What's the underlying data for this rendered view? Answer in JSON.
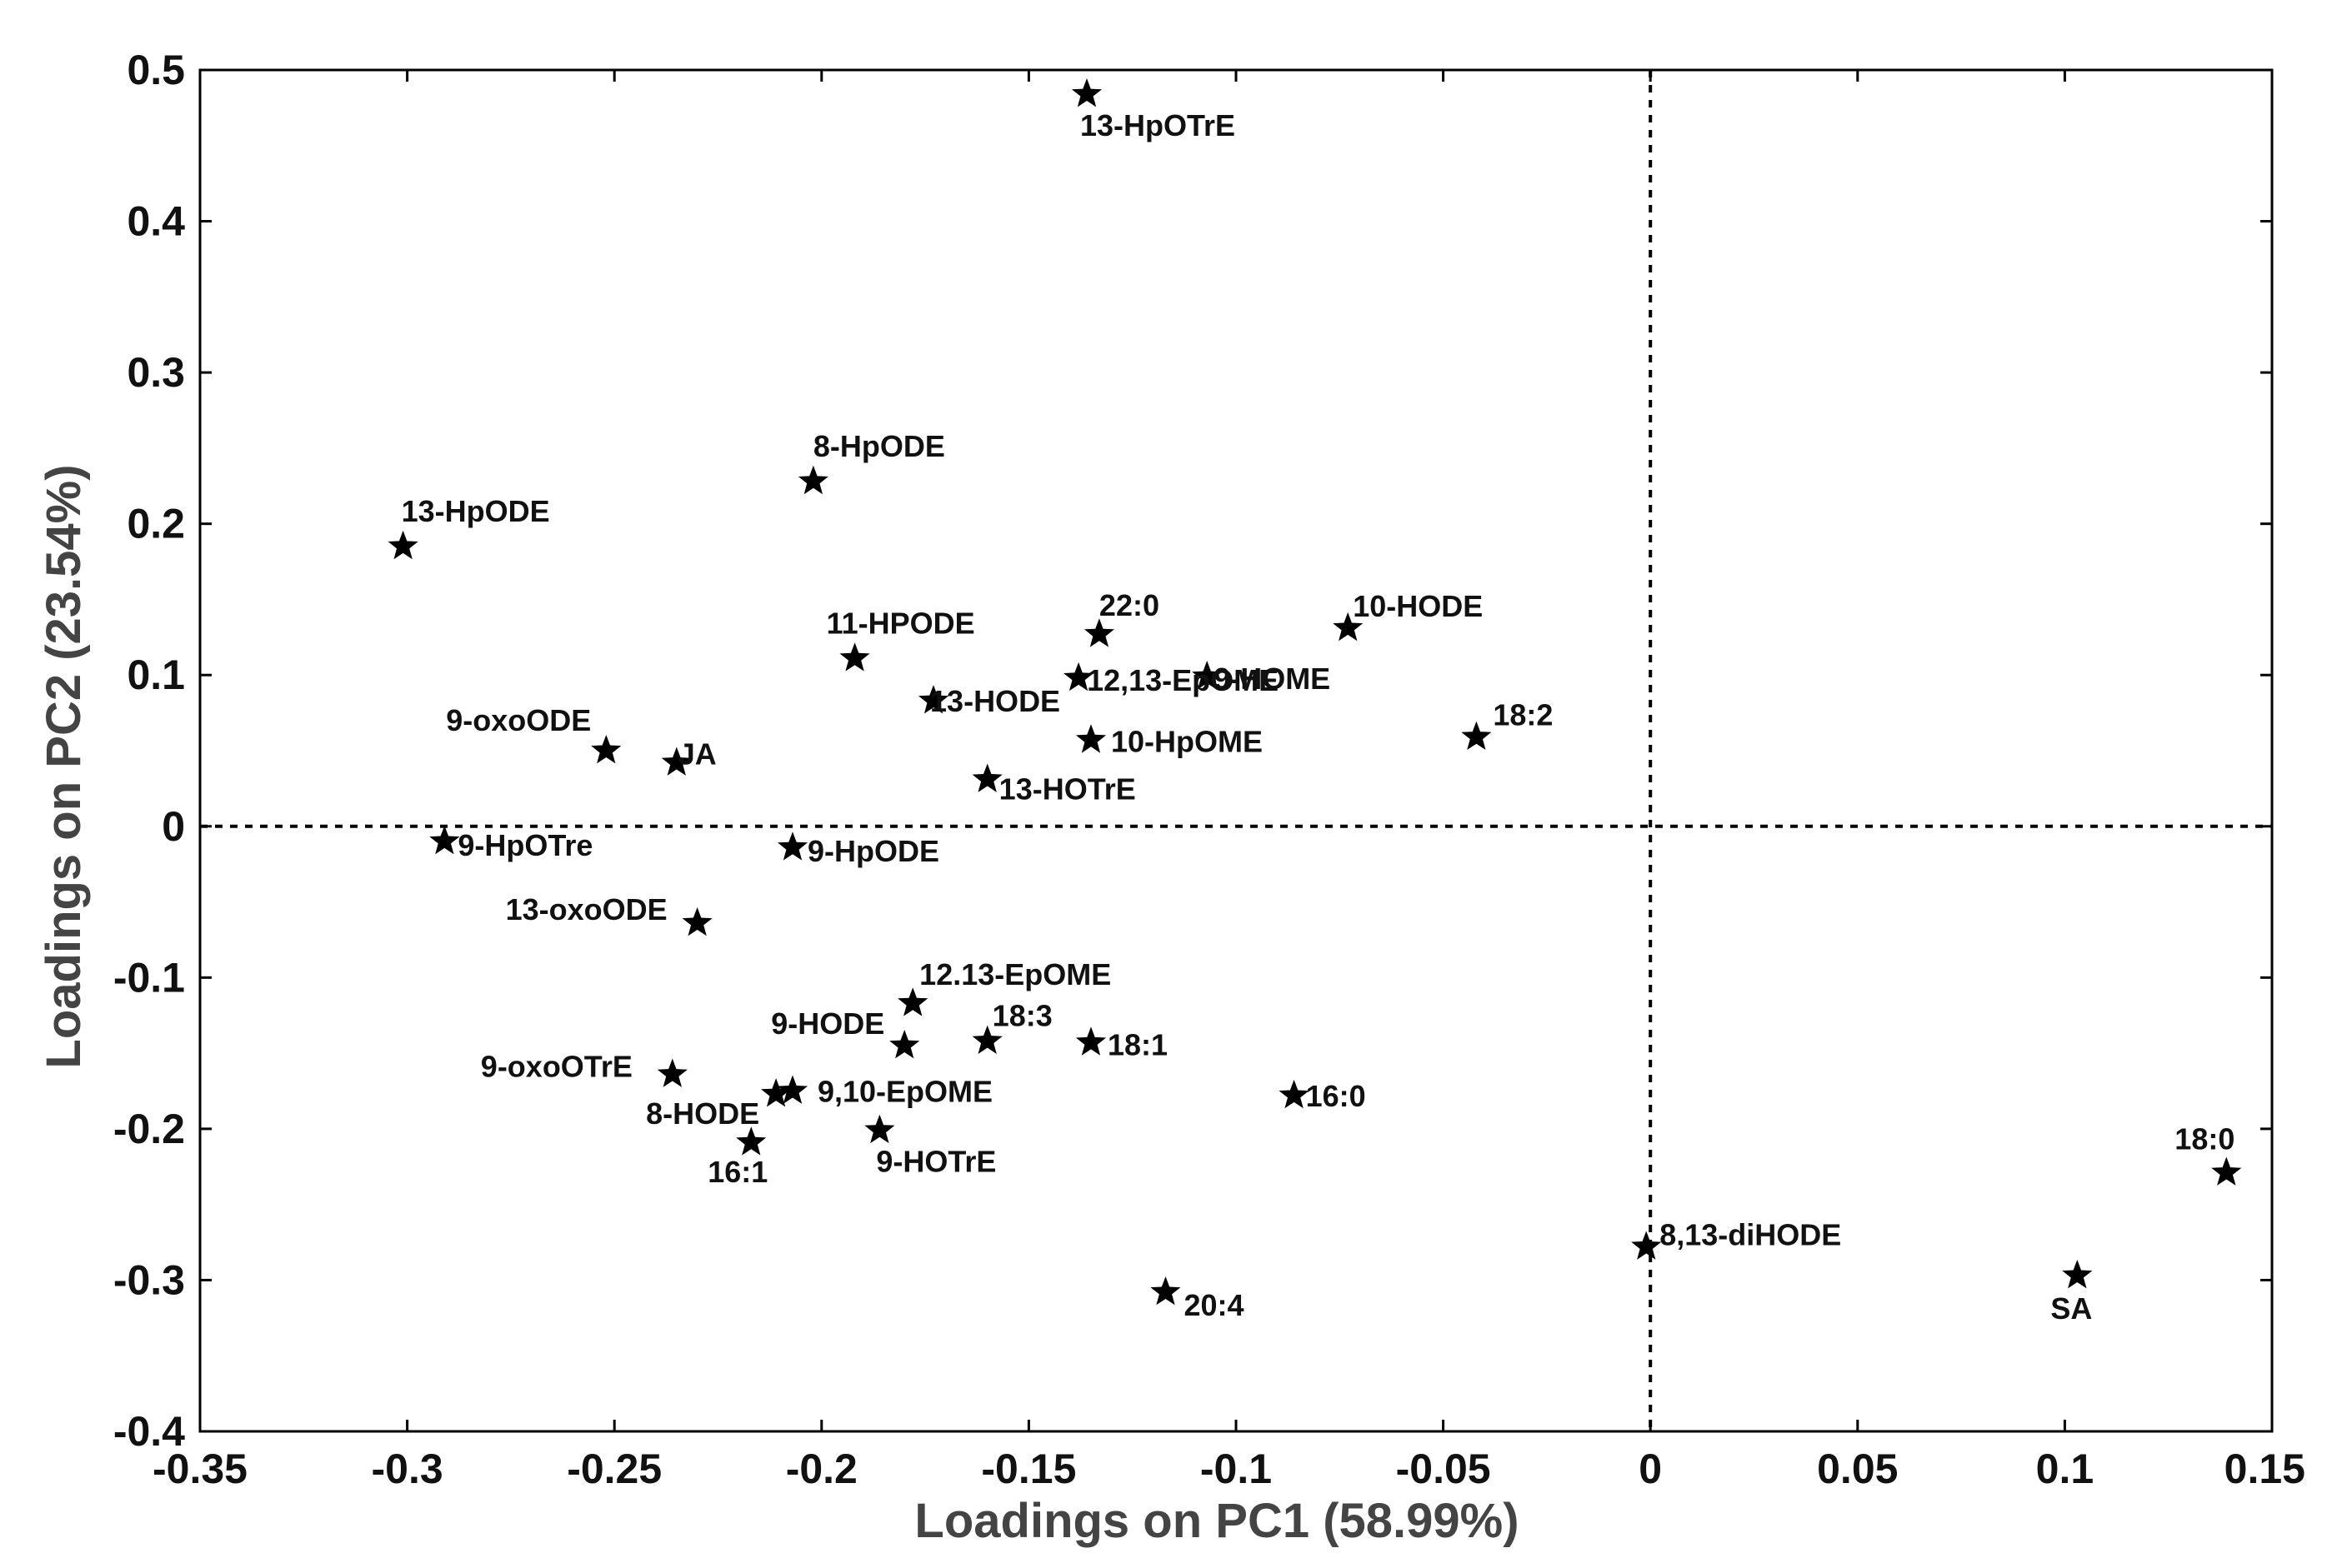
{
  "chart_data": {
    "type": "scatter",
    "title": "",
    "xlabel": "Loadings on PC1 (58.99%)",
    "ylabel": "Loadings on PC2 (23.54%)",
    "xlim": [
      -0.35,
      0.15
    ],
    "ylim": [
      -0.4,
      0.5
    ],
    "xticks": [
      "-0.35",
      "-0.3",
      "-0.25",
      "-0.2",
      "-0.15",
      "-0.1",
      "-0.05",
      "0",
      "0.05",
      "0.1",
      "0.15"
    ],
    "yticks": [
      "0.5",
      "0.4",
      "0.3",
      "0.2",
      "0.1",
      "0",
      "-0.1",
      "-0.2",
      "-0.3",
      "-0.4"
    ],
    "reference_lines": {
      "x": 0,
      "y": 0,
      "style": "dashed"
    },
    "grid": false,
    "marker": "star",
    "color": "#000000",
    "points": [
      {
        "label": "13-HpOTrE",
        "x": -0.136,
        "y": 0.484
      },
      {
        "label": "8-HpODE",
        "x": -0.202,
        "y": 0.228
      },
      {
        "label": "13-HpODE",
        "x": -0.301,
        "y": 0.185
      },
      {
        "label": "11-HPODE",
        "x": -0.192,
        "y": 0.111
      },
      {
        "label": "22:0",
        "x": -0.133,
        "y": 0.127
      },
      {
        "label": "10-HODE",
        "x": -0.073,
        "y": 0.131
      },
      {
        "label": "12,13-EpOME",
        "x": -0.138,
        "y": 0.098
      },
      {
        "label": "9-HOME",
        "x": -0.107,
        "y": 0.099
      },
      {
        "label": "13-HODE",
        "x": -0.173,
        "y": 0.083
      },
      {
        "label": "10-HpOME",
        "x": -0.135,
        "y": 0.057
      },
      {
        "label": "18:2",
        "x": -0.042,
        "y": 0.059
      },
      {
        "label": "9-oxoODE",
        "x": -0.252,
        "y": 0.05
      },
      {
        "label": "JA",
        "x": -0.235,
        "y": 0.042
      },
      {
        "label": "13-HOTrE",
        "x": -0.16,
        "y": 0.031
      },
      {
        "label": "9-HpOTre",
        "x": -0.291,
        "y": -0.01
      },
      {
        "label": "9-HpODE",
        "x": -0.207,
        "y": -0.014
      },
      {
        "label": "13-oxoODE",
        "x": -0.23,
        "y": -0.064
      },
      {
        "label": "12.13-EpOME",
        "x": -0.178,
        "y": -0.117
      },
      {
        "label": "9-HODE",
        "x": -0.18,
        "y": -0.145
      },
      {
        "label": "18:3",
        "x": -0.16,
        "y": -0.142
      },
      {
        "label": "18:1",
        "x": -0.135,
        "y": -0.143
      },
      {
        "label": "9-oxoOTrE",
        "x": -0.236,
        "y": -0.164
      },
      {
        "label": "9,10-EpOME",
        "x": -0.207,
        "y": -0.175
      },
      {
        "label": "8-HODE",
        "x": -0.211,
        "y": -0.177
      },
      {
        "label": "16:0",
        "x": -0.086,
        "y": -0.178
      },
      {
        "label": "16:1",
        "x": -0.217,
        "y": -0.209
      },
      {
        "label": "9-HOTrE",
        "x": -0.186,
        "y": -0.201
      },
      {
        "label": "18:0",
        "x": 0.139,
        "y": -0.229
      },
      {
        "label": "8,13-diHODE",
        "x": -0.001,
        "y": -0.278
      },
      {
        "label": "SA",
        "x": 0.103,
        "y": -0.297
      },
      {
        "label": "20:4",
        "x": -0.117,
        "y": -0.308
      }
    ]
  }
}
